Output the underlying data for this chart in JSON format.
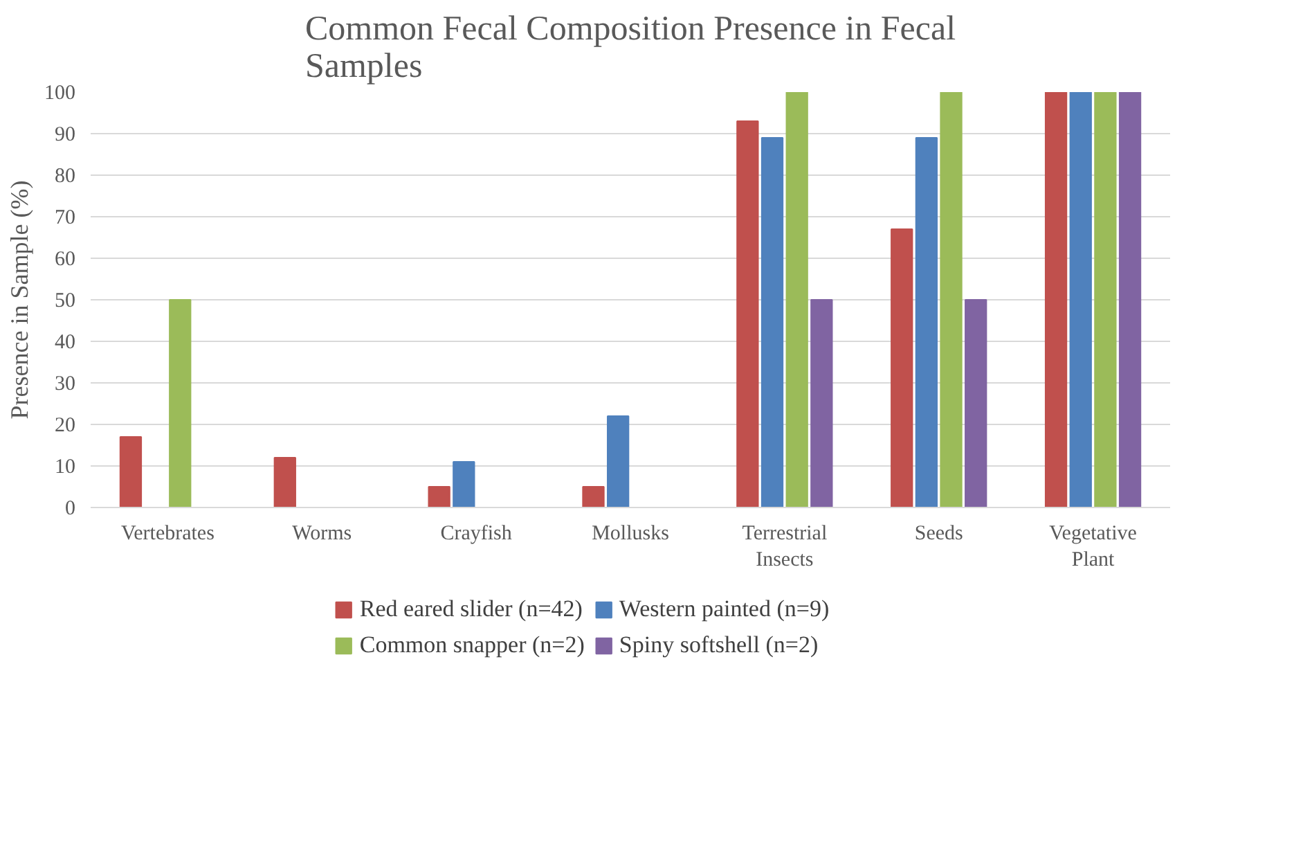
{
  "chart_data": {
    "type": "bar",
    "title": "Common Fecal Composition Presence in Fecal Samples",
    "ylabel": "Presence in Sample (%)",
    "categories": [
      "Vertebrates",
      "Worms",
      "Crayfish",
      "Mollusks",
      "Terrestrial Insects",
      "Seeds",
      "Vegetative Plant"
    ],
    "series": [
      {
        "name": "Red eared slider (n=42)",
        "color": "#c0504d",
        "values": [
          17,
          12,
          5,
          5,
          93,
          67,
          100
        ]
      },
      {
        "name": "Western painted (n=9)",
        "color": "#4f81bd",
        "values": [
          0,
          0,
          11,
          22,
          89,
          89,
          100
        ]
      },
      {
        "name": "Common snapper (n=2)",
        "color": "#9bbb59",
        "values": [
          50,
          0,
          0,
          0,
          100,
          100,
          100
        ]
      },
      {
        "name": "Spiny softshell (n=2)",
        "color": "#8064a2",
        "values": [
          0,
          0,
          0,
          0,
          50,
          50,
          100
        ]
      }
    ],
    "ylim": [
      0,
      100
    ],
    "yticks": [
      0,
      10,
      20,
      30,
      40,
      50,
      60,
      70,
      80,
      90,
      100
    ],
    "grid": "y",
    "legend": "bottom"
  }
}
